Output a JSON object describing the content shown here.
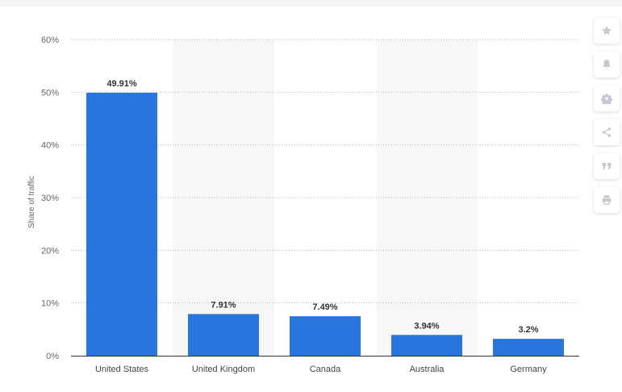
{
  "chart_data": {
    "type": "bar",
    "categories": [
      "United States",
      "United Kingdom",
      "Canada",
      "Australia",
      "Germany"
    ],
    "values": [
      49.91,
      7.91,
      7.49,
      3.94,
      3.2
    ],
    "value_labels": [
      "49.91%",
      "7.91%",
      "7.49%",
      "3.94%",
      "3.2%"
    ],
    "ylabel": "Share of traffic",
    "yticks": [
      "0%",
      "10%",
      "20%",
      "30%",
      "40%",
      "50%",
      "60%"
    ],
    "ylim": [
      0,
      60
    ],
    "grid": true,
    "bar_color": "#2876dd",
    "alt_band_color": "#f7f7f7"
  },
  "toolbar": {
    "icons": [
      "star-icon",
      "bell-icon",
      "gear-icon",
      "share-icon",
      "quote-icon",
      "print-icon"
    ],
    "icon_color": "#c4c8cf"
  }
}
